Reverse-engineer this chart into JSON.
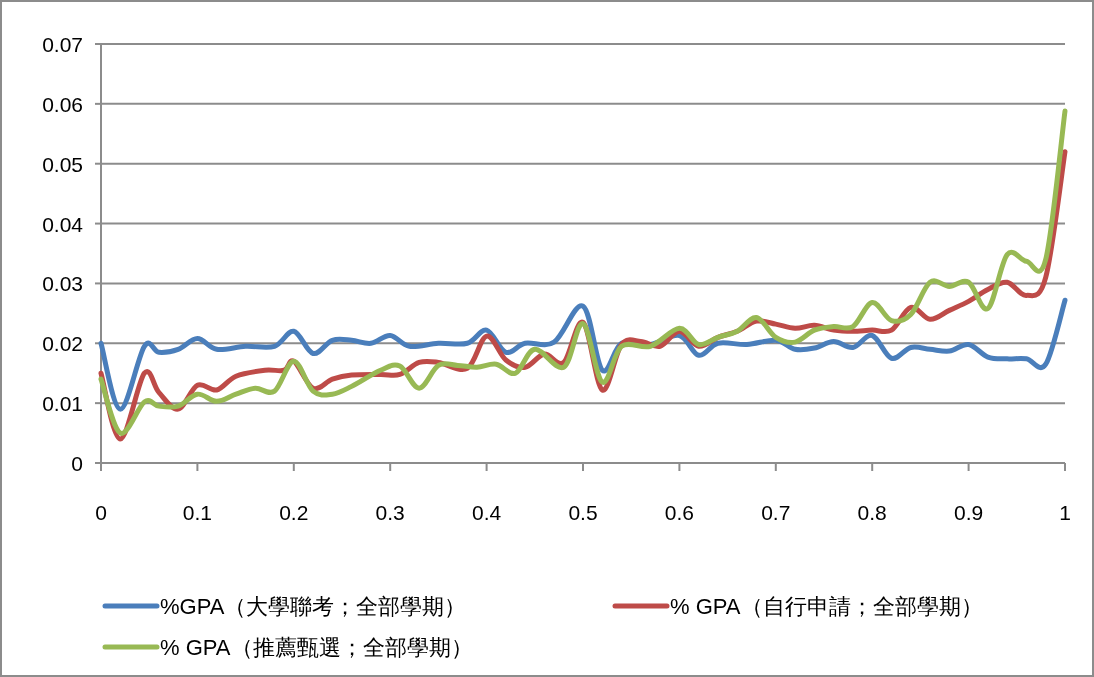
{
  "chart_data": {
    "type": "line",
    "xlim": [
      0,
      1
    ],
    "ylim": [
      0,
      0.07
    ],
    "xticks": [
      0,
      0.1,
      0.2,
      0.3,
      0.4,
      0.5,
      0.6,
      0.7,
      0.8,
      0.9,
      1
    ],
    "yticks": [
      0,
      0.01,
      0.02,
      0.03,
      0.04,
      0.05,
      0.06,
      0.07
    ],
    "grid": "y",
    "legend": "bottom",
    "marker": "none",
    "line_style": "solid",
    "series": [
      {
        "name": "%GPA（大學聯考；全部學期）",
        "color": "#4a7ebb",
        "x": [
          0,
          0.02,
          0.045,
          0.06,
          0.08,
          0.1,
          0.12,
          0.15,
          0.18,
          0.2,
          0.22,
          0.24,
          0.26,
          0.28,
          0.3,
          0.32,
          0.35,
          0.38,
          0.4,
          0.42,
          0.44,
          0.47,
          0.5,
          0.52,
          0.54,
          0.57,
          0.6,
          0.62,
          0.64,
          0.67,
          0.7,
          0.72,
          0.74,
          0.76,
          0.78,
          0.8,
          0.82,
          0.84,
          0.86,
          0.88,
          0.9,
          0.92,
          0.94,
          0.96,
          0.98,
          1
        ],
        "values": [
          0.02,
          0.009,
          0.0195,
          0.0185,
          0.019,
          0.0208,
          0.019,
          0.0195,
          0.0195,
          0.022,
          0.0183,
          0.0205,
          0.0205,
          0.02,
          0.0213,
          0.0195,
          0.02,
          0.02,
          0.0222,
          0.0185,
          0.02,
          0.0202,
          0.0262,
          0.0155,
          0.02,
          0.0198,
          0.0213,
          0.018,
          0.02,
          0.0198,
          0.0205,
          0.019,
          0.0192,
          0.0203,
          0.0193,
          0.0213,
          0.0175,
          0.0193,
          0.019,
          0.0187,
          0.0198,
          0.0177,
          0.0174,
          0.0174,
          0.0165,
          0.0272
        ]
      },
      {
        "name": "% GPA（自行申請；全部學期）",
        "color": "#be4b48",
        "x": [
          0,
          0.02,
          0.045,
          0.06,
          0.08,
          0.1,
          0.12,
          0.14,
          0.17,
          0.19,
          0.2,
          0.22,
          0.24,
          0.26,
          0.29,
          0.31,
          0.33,
          0.35,
          0.38,
          0.4,
          0.42,
          0.44,
          0.46,
          0.48,
          0.5,
          0.52,
          0.54,
          0.56,
          0.58,
          0.6,
          0.62,
          0.64,
          0.66,
          0.68,
          0.7,
          0.72,
          0.74,
          0.76,
          0.78,
          0.8,
          0.82,
          0.84,
          0.86,
          0.88,
          0.9,
          0.92,
          0.94,
          0.96,
          0.98,
          1
        ],
        "values": [
          0.015,
          0.004,
          0.015,
          0.0118,
          0.009,
          0.013,
          0.0122,
          0.0145,
          0.0155,
          0.0155,
          0.017,
          0.0125,
          0.014,
          0.0147,
          0.0148,
          0.0148,
          0.0168,
          0.0168,
          0.0158,
          0.0212,
          0.0172,
          0.016,
          0.0182,
          0.0168,
          0.0235,
          0.0122,
          0.0198,
          0.0203,
          0.0195,
          0.022,
          0.0195,
          0.021,
          0.022,
          0.0237,
          0.0232,
          0.0225,
          0.023,
          0.0222,
          0.022,
          0.0222,
          0.0222,
          0.026,
          0.024,
          0.0255,
          0.027,
          0.029,
          0.0302,
          0.028,
          0.031,
          0.052
        ]
      },
      {
        "name": "% GPA（推薦甄選；全部學期）",
        "color": "#98b954",
        "x": [
          0,
          0.02,
          0.045,
          0.06,
          0.08,
          0.1,
          0.12,
          0.14,
          0.16,
          0.18,
          0.2,
          0.22,
          0.24,
          0.26,
          0.29,
          0.31,
          0.33,
          0.35,
          0.37,
          0.39,
          0.41,
          0.43,
          0.45,
          0.48,
          0.5,
          0.52,
          0.54,
          0.57,
          0.6,
          0.62,
          0.64,
          0.66,
          0.68,
          0.7,
          0.72,
          0.74,
          0.76,
          0.78,
          0.8,
          0.82,
          0.84,
          0.86,
          0.88,
          0.9,
          0.92,
          0.94,
          0.96,
          0.98,
          1
        ],
        "values": [
          0.014,
          0.005,
          0.0102,
          0.0095,
          0.0095,
          0.0115,
          0.0103,
          0.0115,
          0.0125,
          0.012,
          0.017,
          0.012,
          0.0115,
          0.0128,
          0.0155,
          0.0162,
          0.0125,
          0.0163,
          0.0163,
          0.016,
          0.0165,
          0.015,
          0.019,
          0.016,
          0.0233,
          0.0135,
          0.0195,
          0.0195,
          0.0225,
          0.0198,
          0.021,
          0.022,
          0.0243,
          0.021,
          0.0202,
          0.0222,
          0.0228,
          0.0228,
          0.0268,
          0.0238,
          0.0248,
          0.0302,
          0.0295,
          0.0302,
          0.0258,
          0.0348,
          0.0337,
          0.034,
          0.0588
        ]
      }
    ]
  }
}
